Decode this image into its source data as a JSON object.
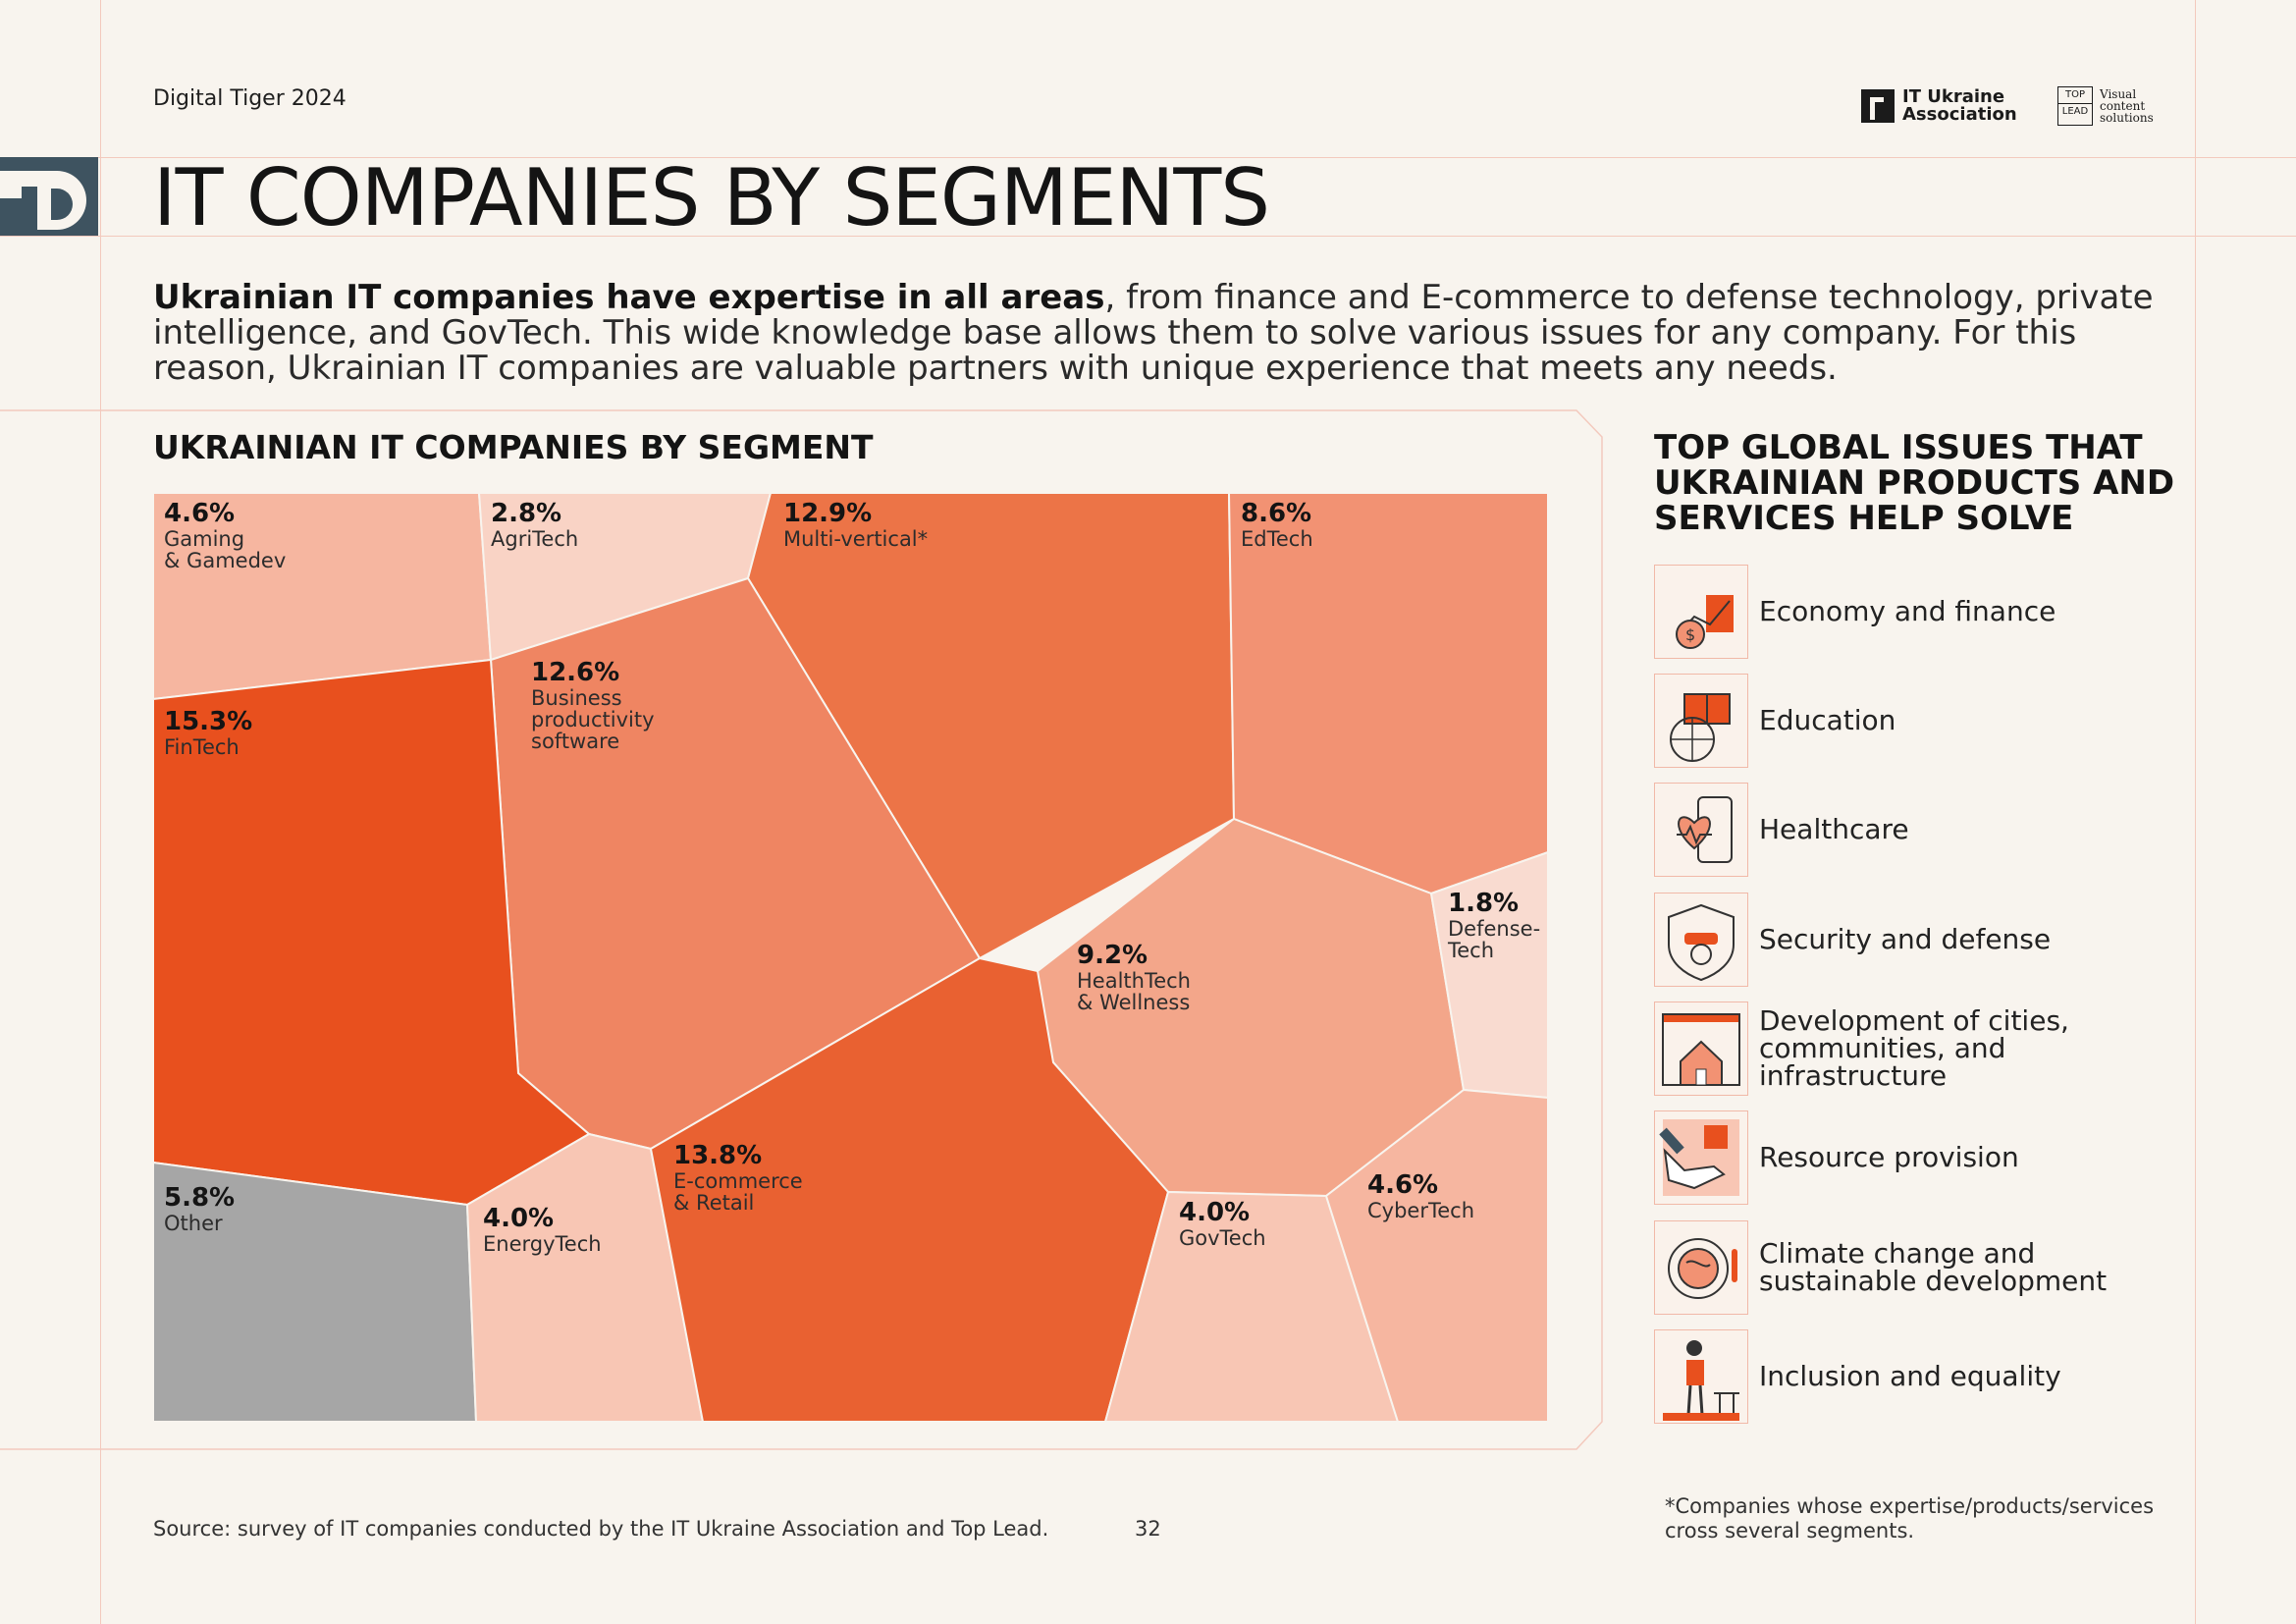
{
  "header": {
    "brand": "Digital Tiger 2024",
    "logo_iua": "IT Ukraine Association",
    "logo_top_line1": "TOP",
    "logo_top_line2": "LEAD",
    "logo_top_tagline": "Visual content solutions"
  },
  "title": "IT COMPANIES BY SEGMENTS",
  "intro": {
    "bold": "Ukrainian IT companies have expertise in all areas",
    "rest": ", from finance and E-commerce to defense technology, private intelligence, and GovTech. This wide knowledge base allows them to solve various issues for any company. For this reason, Ukrainian IT companies are valuable partners with unique experience that meets any needs."
  },
  "chart_data": {
    "type": "voronoi treemap",
    "title": "UKRAINIAN IT COMPANIES BY SEGMENT",
    "unit": "%",
    "segments": [
      {
        "label": "Gaming & Gamedev",
        "value": 4.6,
        "pct": "4.6%",
        "line1": "Gaming",
        "line2": "& Gamedev",
        "line3": "",
        "color": "#f6b6a0"
      },
      {
        "label": "AgriTech",
        "value": 2.8,
        "pct": "2.8%",
        "line1": "AgriTech",
        "line2": "",
        "line3": "",
        "color": "#f9d3c5"
      },
      {
        "label": "Multi-vertical*",
        "value": 12.9,
        "pct": "12.9%",
        "line1": "Multi-vertical*",
        "line2": "",
        "line3": "",
        "color": "#ec7447"
      },
      {
        "label": "EdTech",
        "value": 8.6,
        "pct": "8.6%",
        "line1": "EdTech",
        "line2": "",
        "line3": "",
        "color": "#f29273"
      },
      {
        "label": "Business productivity software",
        "value": 12.6,
        "pct": "12.6%",
        "line1": "Business",
        "line2": "productivity",
        "line3": "software",
        "color": "#ef8562"
      },
      {
        "label": "FinTech",
        "value": 15.3,
        "pct": "15.3%",
        "line1": "FinTech",
        "line2": "",
        "line3": "",
        "color": "#e8501e"
      },
      {
        "label": "HealthTech & Wellness",
        "value": 9.2,
        "pct": "9.2%",
        "line1": "HealthTech",
        "line2": "& Wellness",
        "line3": "",
        "color": "#f3a68a"
      },
      {
        "label": "Defense-Tech",
        "value": 1.8,
        "pct": "1.8%",
        "line1": "Defense-",
        "line2": "Tech",
        "line3": "",
        "color": "#f9dbd0"
      },
      {
        "label": "Other",
        "value": 5.8,
        "pct": "5.8%",
        "line1": "Other",
        "line2": "",
        "line3": "",
        "color": "#a6a6a6"
      },
      {
        "label": "EnergyTech",
        "value": 4.0,
        "pct": "4.0%",
        "line1": "EnergyTech",
        "line2": "",
        "line3": "",
        "color": "#f8c6b4"
      },
      {
        "label": "E-commerce & Retail",
        "value": 13.8,
        "pct": "13.8%",
        "line1": "E-commerce",
        "line2": "& Retail",
        "line3": "",
        "color": "#e96131"
      },
      {
        "label": "GovTech",
        "value": 4.0,
        "pct": "4.0%",
        "line1": "GovTech",
        "line2": "",
        "line3": "",
        "color": "#f8c6b4"
      },
      {
        "label": "CyberTech",
        "value": 4.6,
        "pct": "4.6%",
        "line1": "CyberTech",
        "line2": "",
        "line3": "",
        "color": "#f6b6a0"
      }
    ]
  },
  "issues": {
    "title": "TOP GLOBAL ISSUES THAT UKRAINIAN PRODUCTS AND SERVICES HELP SOLVE",
    "items": [
      {
        "label": "Economy and finance",
        "icon": "money-bag-chart-icon"
      },
      {
        "label": "Education",
        "icon": "book-globe-icon"
      },
      {
        "label": "Healthcare",
        "icon": "heart-phone-icon"
      },
      {
        "label": "Security and defense",
        "icon": "shield-drone-icon"
      },
      {
        "label": "Development of cities, communities, and infrastructure",
        "icon": "house-city-icon"
      },
      {
        "label": "Resource provision",
        "icon": "hand-box-icon"
      },
      {
        "label": "Climate change and sustainable development",
        "icon": "earth-thermometer-icon"
      },
      {
        "label": "Inclusion and equality",
        "icon": "person-prosthesis-icon"
      }
    ]
  },
  "footer": {
    "source": "Source: survey of IT companies conducted by the IT Ukraine Association and Top Lead.",
    "page": "32",
    "footnote": "*Companies whose expertise/products/services cross several segments."
  },
  "colors": {
    "background": "#f8f4ee",
    "accent": "#e8501e",
    "guide": "#f3c9bd",
    "td_block": "#3e5360"
  }
}
